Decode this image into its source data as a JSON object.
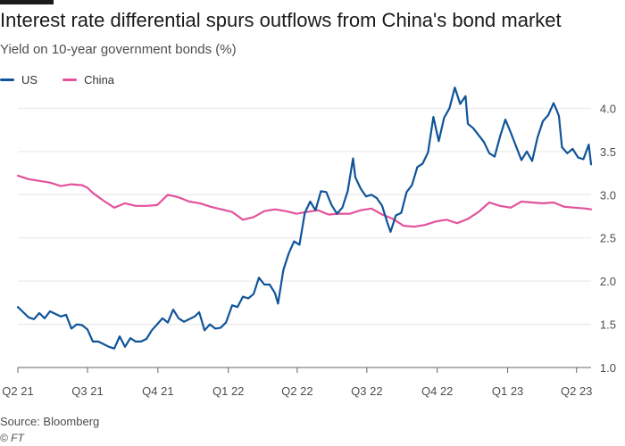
{
  "chart_data": {
    "type": "line",
    "title": "Interest rate differential spurs outflows from China's bond market",
    "subtitle": "Yield on 10-year government bonds (%)",
    "xlabel": "",
    "ylabel": "",
    "ylim": [
      1.0,
      4.2
    ],
    "yticks": [
      "1.0",
      "1.5",
      "2.0",
      "2.5",
      "3.0",
      "3.5",
      "4.0"
    ],
    "xlim": [
      "2021-04-01",
      "2023-04-20"
    ],
    "xticks": [
      {
        "label": "Q2 21",
        "date": "2021-04-01"
      },
      {
        "label": "Q3 21",
        "date": "2021-07-01"
      },
      {
        "label": "Q4 21",
        "date": "2021-10-01"
      },
      {
        "label": "Q1 22",
        "date": "2022-01-01"
      },
      {
        "label": "Q2 22",
        "date": "2022-04-01"
      },
      {
        "label": "Q3 22",
        "date": "2022-07-01"
      },
      {
        "label": "Q4 22",
        "date": "2022-10-01"
      },
      {
        "label": "Q1 23",
        "date": "2023-01-01"
      },
      {
        "label": "Q2 23",
        "date": "2023-04-01"
      }
    ],
    "grid": true,
    "legend_position": "top-left",
    "series": [
      {
        "name": "US",
        "color": "#0f5499",
        "points": [
          [
            "2021-04-01",
            1.7
          ],
          [
            "2021-04-08",
            1.64
          ],
          [
            "2021-04-15",
            1.58
          ],
          [
            "2021-04-22",
            1.56
          ],
          [
            "2021-04-29",
            1.63
          ],
          [
            "2021-05-06",
            1.57
          ],
          [
            "2021-05-13",
            1.65
          ],
          [
            "2021-05-20",
            1.62
          ],
          [
            "2021-05-27",
            1.59
          ],
          [
            "2021-06-03",
            1.61
          ],
          [
            "2021-06-10",
            1.45
          ],
          [
            "2021-06-17",
            1.5
          ],
          [
            "2021-06-24",
            1.49
          ],
          [
            "2021-07-01",
            1.44
          ],
          [
            "2021-07-08",
            1.3
          ],
          [
            "2021-07-15",
            1.3
          ],
          [
            "2021-07-22",
            1.27
          ],
          [
            "2021-07-29",
            1.24
          ],
          [
            "2021-08-05",
            1.22
          ],
          [
            "2021-08-12",
            1.36
          ],
          [
            "2021-08-19",
            1.24
          ],
          [
            "2021-08-26",
            1.34
          ],
          [
            "2021-09-02",
            1.3
          ],
          [
            "2021-09-09",
            1.3
          ],
          [
            "2021-09-16",
            1.33
          ],
          [
            "2021-09-23",
            1.43
          ],
          [
            "2021-09-30",
            1.5
          ],
          [
            "2021-10-07",
            1.57
          ],
          [
            "2021-10-14",
            1.52
          ],
          [
            "2021-10-21",
            1.67
          ],
          [
            "2021-10-28",
            1.57
          ],
          [
            "2021-11-04",
            1.53
          ],
          [
            "2021-11-11",
            1.56
          ],
          [
            "2021-11-18",
            1.59
          ],
          [
            "2021-11-24",
            1.64
          ],
          [
            "2021-12-01",
            1.43
          ],
          [
            "2021-12-08",
            1.5
          ],
          [
            "2021-12-15",
            1.45
          ],
          [
            "2021-12-22",
            1.46
          ],
          [
            "2021-12-29",
            1.52
          ],
          [
            "2022-01-06",
            1.72
          ],
          [
            "2022-01-13",
            1.7
          ],
          [
            "2022-01-20",
            1.82
          ],
          [
            "2022-01-27",
            1.8
          ],
          [
            "2022-02-03",
            1.85
          ],
          [
            "2022-02-10",
            2.04
          ],
          [
            "2022-02-17",
            1.96
          ],
          [
            "2022-02-24",
            1.96
          ],
          [
            "2022-03-03",
            1.86
          ],
          [
            "2022-03-07",
            1.74
          ],
          [
            "2022-03-14",
            2.13
          ],
          [
            "2022-03-21",
            2.32
          ],
          [
            "2022-03-28",
            2.46
          ],
          [
            "2022-04-04",
            2.42
          ],
          [
            "2022-04-11",
            2.79
          ],
          [
            "2022-04-18",
            2.92
          ],
          [
            "2022-04-25",
            2.82
          ],
          [
            "2022-05-02",
            3.04
          ],
          [
            "2022-05-09",
            3.03
          ],
          [
            "2022-05-16",
            2.88
          ],
          [
            "2022-05-23",
            2.78
          ],
          [
            "2022-05-30",
            2.85
          ],
          [
            "2022-06-06",
            3.04
          ],
          [
            "2022-06-13",
            3.42
          ],
          [
            "2022-06-16",
            3.2
          ],
          [
            "2022-06-23",
            3.07
          ],
          [
            "2022-06-30",
            2.98
          ],
          [
            "2022-07-07",
            3.0
          ],
          [
            "2022-07-14",
            2.96
          ],
          [
            "2022-07-21",
            2.87
          ],
          [
            "2022-07-28",
            2.67
          ],
          [
            "2022-08-01",
            2.57
          ],
          [
            "2022-08-08",
            2.76
          ],
          [
            "2022-08-15",
            2.79
          ],
          [
            "2022-08-22",
            3.03
          ],
          [
            "2022-08-29",
            3.11
          ],
          [
            "2022-09-05",
            3.32
          ],
          [
            "2022-09-12",
            3.36
          ],
          [
            "2022-09-19",
            3.49
          ],
          [
            "2022-09-26",
            3.9
          ],
          [
            "2022-10-03",
            3.62
          ],
          [
            "2022-10-10",
            3.89
          ],
          [
            "2022-10-17",
            4.0
          ],
          [
            "2022-10-24",
            4.24
          ],
          [
            "2022-10-31",
            4.05
          ],
          [
            "2022-11-07",
            4.14
          ],
          [
            "2022-11-10",
            3.82
          ],
          [
            "2022-11-17",
            3.77
          ],
          [
            "2022-11-24",
            3.69
          ],
          [
            "2022-12-01",
            3.61
          ],
          [
            "2022-12-08",
            3.48
          ],
          [
            "2022-12-15",
            3.44
          ],
          [
            "2022-12-22",
            3.67
          ],
          [
            "2022-12-29",
            3.87
          ],
          [
            "2023-01-05",
            3.72
          ],
          [
            "2023-01-12",
            3.56
          ],
          [
            "2023-01-19",
            3.4
          ],
          [
            "2023-01-26",
            3.5
          ],
          [
            "2023-02-02",
            3.39
          ],
          [
            "2023-02-09",
            3.66
          ],
          [
            "2023-02-16",
            3.85
          ],
          [
            "2023-02-23",
            3.92
          ],
          [
            "2023-03-02",
            4.06
          ],
          [
            "2023-03-06",
            3.98
          ],
          [
            "2023-03-09",
            3.91
          ],
          [
            "2023-03-13",
            3.55
          ],
          [
            "2023-03-20",
            3.48
          ],
          [
            "2023-03-27",
            3.53
          ],
          [
            "2023-04-03",
            3.43
          ],
          [
            "2023-04-10",
            3.41
          ],
          [
            "2023-04-17",
            3.58
          ],
          [
            "2023-04-20",
            3.35
          ]
        ]
      },
      {
        "name": "China",
        "color": "#e3529c",
        "points": [
          [
            "2021-04-01",
            3.22
          ],
          [
            "2021-04-15",
            3.18
          ],
          [
            "2021-04-29",
            3.16
          ],
          [
            "2021-05-13",
            3.14
          ],
          [
            "2021-05-27",
            3.1
          ],
          [
            "2021-06-10",
            3.12
          ],
          [
            "2021-06-24",
            3.11
          ],
          [
            "2021-07-01",
            3.08
          ],
          [
            "2021-07-08",
            3.02
          ],
          [
            "2021-07-22",
            2.93
          ],
          [
            "2021-08-05",
            2.85
          ],
          [
            "2021-08-19",
            2.9
          ],
          [
            "2021-09-02",
            2.87
          ],
          [
            "2021-09-16",
            2.87
          ],
          [
            "2021-09-30",
            2.88
          ],
          [
            "2021-10-14",
            3.0
          ],
          [
            "2021-10-28",
            2.97
          ],
          [
            "2021-11-11",
            2.92
          ],
          [
            "2021-11-25",
            2.9
          ],
          [
            "2021-12-09",
            2.86
          ],
          [
            "2021-12-23",
            2.83
          ],
          [
            "2022-01-06",
            2.8
          ],
          [
            "2022-01-20",
            2.71
          ],
          [
            "2022-02-03",
            2.74
          ],
          [
            "2022-02-17",
            2.81
          ],
          [
            "2022-03-03",
            2.83
          ],
          [
            "2022-03-17",
            2.81
          ],
          [
            "2022-03-31",
            2.78
          ],
          [
            "2022-04-14",
            2.8
          ],
          [
            "2022-04-28",
            2.82
          ],
          [
            "2022-05-12",
            2.77
          ],
          [
            "2022-05-26",
            2.78
          ],
          [
            "2022-06-09",
            2.78
          ],
          [
            "2022-06-23",
            2.82
          ],
          [
            "2022-07-07",
            2.84
          ],
          [
            "2022-07-21",
            2.77
          ],
          [
            "2022-08-04",
            2.72
          ],
          [
            "2022-08-18",
            2.64
          ],
          [
            "2022-09-01",
            2.63
          ],
          [
            "2022-09-15",
            2.65
          ],
          [
            "2022-09-29",
            2.69
          ],
          [
            "2022-10-13",
            2.71
          ],
          [
            "2022-10-27",
            2.67
          ],
          [
            "2022-11-10",
            2.72
          ],
          [
            "2022-11-24",
            2.8
          ],
          [
            "2022-12-08",
            2.91
          ],
          [
            "2022-12-22",
            2.87
          ],
          [
            "2023-01-05",
            2.85
          ],
          [
            "2023-01-19",
            2.92
          ],
          [
            "2023-02-02",
            2.91
          ],
          [
            "2023-02-16",
            2.9
          ],
          [
            "2023-03-02",
            2.91
          ],
          [
            "2023-03-16",
            2.86
          ],
          [
            "2023-03-30",
            2.85
          ],
          [
            "2023-04-13",
            2.84
          ],
          [
            "2023-04-20",
            2.83
          ]
        ]
      }
    ]
  },
  "source": "Source: Bloomberg",
  "credit": "© FT"
}
